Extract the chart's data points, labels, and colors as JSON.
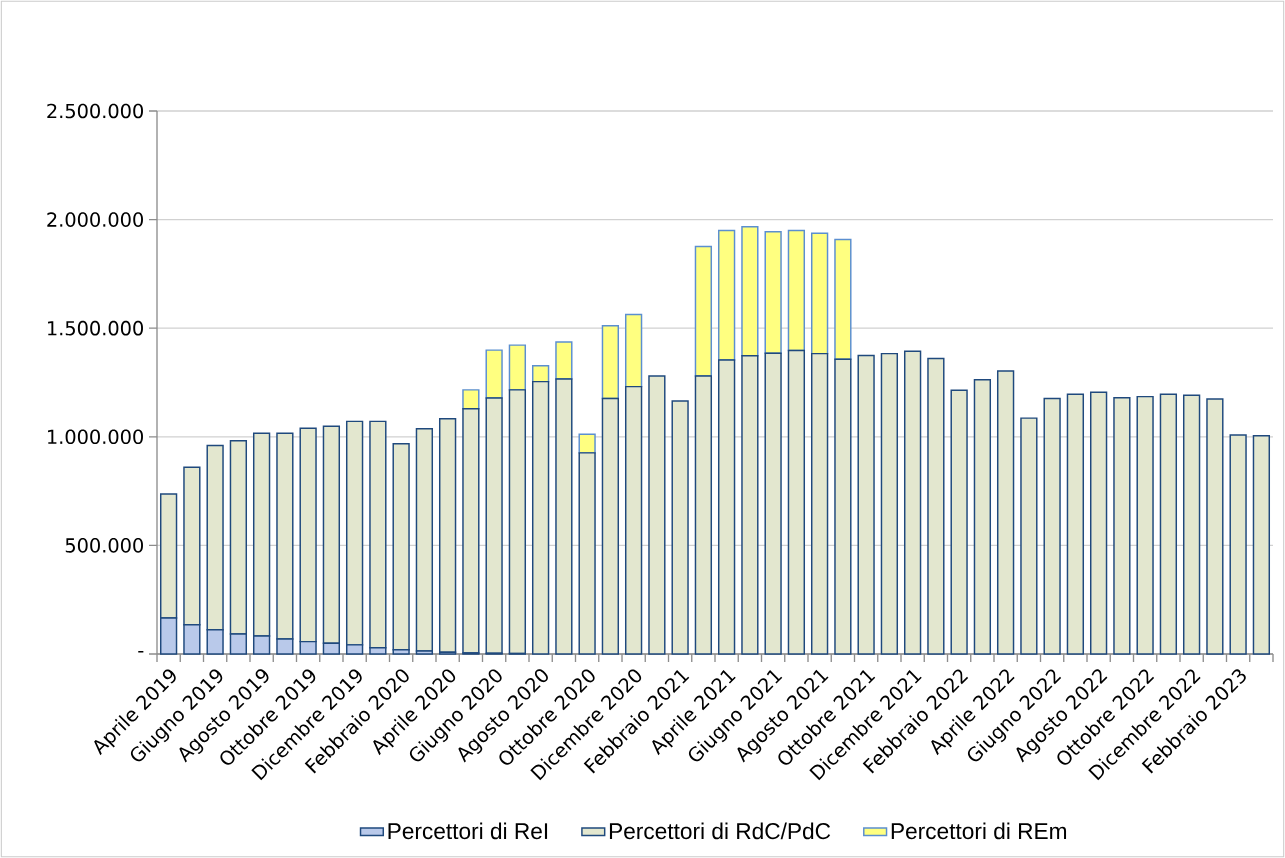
{
  "chart_data": {
    "type": "bar",
    "stacked": true,
    "grid": "y",
    "legend": "bottom",
    "categories": [
      "Aprile 2019",
      null,
      "Giugno 2019",
      null,
      "Agosto 2019",
      null,
      "Ottobre 2019",
      null,
      "Dicembre 2019",
      null,
      "Febbraio 2020",
      null,
      "Aprile 2020",
      null,
      "Giugno 2020",
      null,
      "Agosto 2020",
      null,
      "Ottobre 2020",
      null,
      "Dicembre 2020",
      null,
      "Febbraio 2021",
      null,
      "Aprile 2021",
      null,
      "Giugno 2021",
      null,
      "Agosto 2021",
      null,
      "Ottobre 2021",
      null,
      "Dicembre 2021",
      null,
      "Febbraio 2022",
      null,
      "Aprile 2022",
      null,
      "Giugno 2022",
      null,
      "Agosto 2022",
      null,
      "Ottobre 2022",
      null,
      "Dicembre 2022",
      null,
      "Febbraio 2023",
      null
    ],
    "ylim": [
      0,
      2500000
    ],
    "yticks": [
      {
        "value": 0,
        "label": "-"
      },
      {
        "value": 500000,
        "label": "500.000"
      },
      {
        "value": 1000000,
        "label": "1.000.000"
      },
      {
        "value": 1500000,
        "label": "1.500.000"
      },
      {
        "value": 2000000,
        "label": "2.000.000"
      },
      {
        "value": 2500000,
        "label": "2.500.000"
      }
    ],
    "series": [
      {
        "name": "Percettori di ReI",
        "color": "#b9c9ea",
        "values": [
          166000,
          135000,
          112000,
          92000,
          83000,
          69000,
          57000,
          49000,
          42000,
          29000,
          20000,
          14000,
          8000,
          5000,
          3000,
          2000,
          0,
          0,
          0,
          0,
          0,
          0,
          0,
          0,
          0,
          0,
          0,
          0,
          0,
          0,
          0,
          0,
          0,
          0,
          0,
          0,
          0,
          0,
          0,
          0,
          0,
          0,
          0,
          0,
          0,
          0,
          0,
          0
        ]
      },
      {
        "name": "Percettori di RdC/PdC",
        "color": "#e3e7cf",
        "values": [
          571000,
          725000,
          848000,
          890000,
          933000,
          947000,
          982000,
          1000000,
          1029000,
          1042000,
          948000,
          1023000,
          1075000,
          1124000,
          1176000,
          1214000,
          1254000,
          1266000,
          926000,
          1176000,
          1231000,
          1280000,
          1165000,
          1280000,
          1354000,
          1373000,
          1385000,
          1397000,
          1383000,
          1357000,
          1374000,
          1383000,
          1394000,
          1360000,
          1214000,
          1263000,
          1303000,
          1086000,
          1176000,
          1196000,
          1205000,
          1180000,
          1185000,
          1196000,
          1191000,
          1174000,
          1008000,
          1005000
        ]
      },
      {
        "name": "Percettori di REm",
        "color": "#ffff80",
        "values": [
          0,
          0,
          0,
          0,
          0,
          0,
          0,
          0,
          0,
          0,
          0,
          0,
          0,
          87000,
          220000,
          206000,
          73000,
          170000,
          86000,
          335000,
          332000,
          0,
          0,
          596000,
          596000,
          594000,
          559000,
          553000,
          554000,
          551000,
          0,
          0,
          0,
          0,
          0,
          0,
          0,
          0,
          0,
          0,
          0,
          0,
          0,
          0,
          0,
          0,
          0,
          0
        ]
      }
    ]
  }
}
